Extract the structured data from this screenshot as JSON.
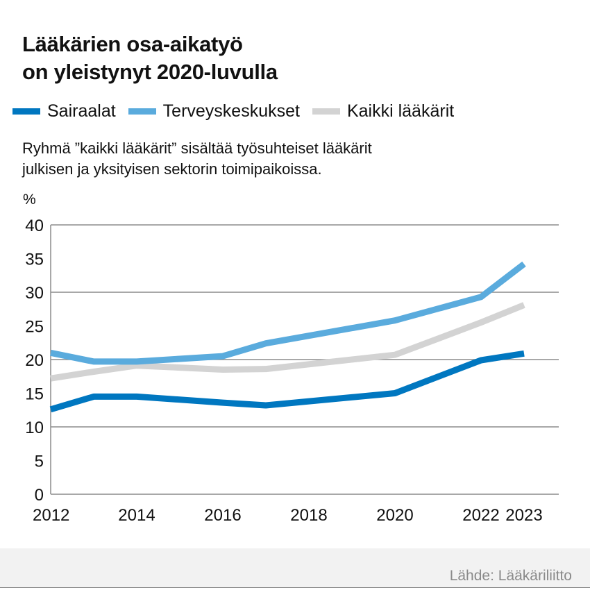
{
  "title_lines": [
    "Lääkärien osa-aikatyö",
    "on yleistynyt 2020-luvulla"
  ],
  "subtitle_lines": [
    "Ryhmä ”kaikki lääkärit” sisältää työsuhteiset lääkärit",
    "julkisen ja yksityisen sektorin toimipaikoissa."
  ],
  "unit_label": "%",
  "source": "Lähde: Lääkäriliitto",
  "colors": {
    "sairaalat": "#0077c0",
    "terveyskeskukset": "#5aabdd",
    "kaikki": "#d3d3d3",
    "grid": "#8c8c8c"
  },
  "chart_data": {
    "type": "line",
    "title": "Lääkärien osa-aikatyö on yleistynyt 2020-luvulla",
    "xlabel": "",
    "ylabel": "%",
    "x": [
      2012,
      2013,
      2014,
      2016,
      2017,
      2020,
      2022,
      2023
    ],
    "xticks": [
      "2012",
      "2014",
      "2016",
      "2018",
      "2020",
      "2022",
      "2023"
    ],
    "yticks": [
      "0",
      "5",
      "10",
      "15",
      "20",
      "25",
      "30",
      "35",
      "40"
    ],
    "xlim": [
      2012,
      2023
    ],
    "ylim": [
      0,
      40
    ],
    "grid": "horizontal at 0, 10, 20, 30, 40",
    "legend_position": "top",
    "series": [
      {
        "name": "Sairaalat",
        "color": "#0077c0",
        "values": [
          12.6,
          14.5,
          14.5,
          13.6,
          13.2,
          15.0,
          19.9,
          20.9
        ]
      },
      {
        "name": "Terveyskeskukset",
        "color": "#5aabdd",
        "values": [
          21.0,
          19.7,
          19.7,
          20.5,
          22.4,
          25.8,
          29.3,
          34.2
        ]
      },
      {
        "name": "Kaikki lääkärit",
        "color": "#d3d3d3",
        "values": [
          17.2,
          18.2,
          19.1,
          18.5,
          18.6,
          20.7,
          25.5,
          28.1
        ]
      }
    ]
  }
}
